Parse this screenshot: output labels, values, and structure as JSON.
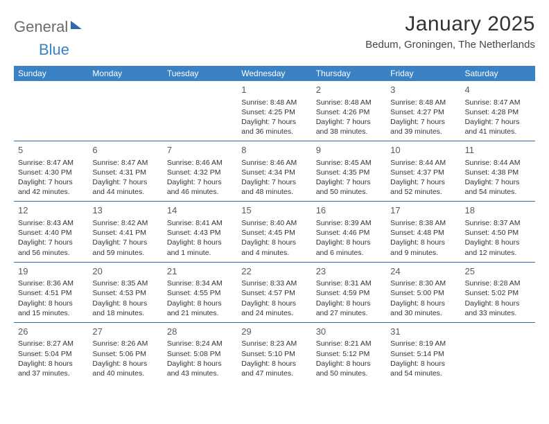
{
  "logo": {
    "part1": "General",
    "part2": "Blue"
  },
  "title": "January 2025",
  "location": "Bedum, Groningen, The Netherlands",
  "colors": {
    "header_bg": "#3b82c4",
    "header_text": "#ffffff",
    "border": "#2f6aa8",
    "text": "#333333",
    "logo_gray": "#6b6b6b",
    "logo_blue": "#3b82c4",
    "background": "#ffffff"
  },
  "dow": [
    "Sunday",
    "Monday",
    "Tuesday",
    "Wednesday",
    "Thursday",
    "Friday",
    "Saturday"
  ],
  "weeks": [
    [
      null,
      null,
      null,
      {
        "n": "1",
        "sr": "Sunrise: 8:48 AM",
        "ss": "Sunset: 4:25 PM",
        "d1": "Daylight: 7 hours",
        "d2": "and 36 minutes."
      },
      {
        "n": "2",
        "sr": "Sunrise: 8:48 AM",
        "ss": "Sunset: 4:26 PM",
        "d1": "Daylight: 7 hours",
        "d2": "and 38 minutes."
      },
      {
        "n": "3",
        "sr": "Sunrise: 8:48 AM",
        "ss": "Sunset: 4:27 PM",
        "d1": "Daylight: 7 hours",
        "d2": "and 39 minutes."
      },
      {
        "n": "4",
        "sr": "Sunrise: 8:47 AM",
        "ss": "Sunset: 4:28 PM",
        "d1": "Daylight: 7 hours",
        "d2": "and 41 minutes."
      }
    ],
    [
      {
        "n": "5",
        "sr": "Sunrise: 8:47 AM",
        "ss": "Sunset: 4:30 PM",
        "d1": "Daylight: 7 hours",
        "d2": "and 42 minutes."
      },
      {
        "n": "6",
        "sr": "Sunrise: 8:47 AM",
        "ss": "Sunset: 4:31 PM",
        "d1": "Daylight: 7 hours",
        "d2": "and 44 minutes."
      },
      {
        "n": "7",
        "sr": "Sunrise: 8:46 AM",
        "ss": "Sunset: 4:32 PM",
        "d1": "Daylight: 7 hours",
        "d2": "and 46 minutes."
      },
      {
        "n": "8",
        "sr": "Sunrise: 8:46 AM",
        "ss": "Sunset: 4:34 PM",
        "d1": "Daylight: 7 hours",
        "d2": "and 48 minutes."
      },
      {
        "n": "9",
        "sr": "Sunrise: 8:45 AM",
        "ss": "Sunset: 4:35 PM",
        "d1": "Daylight: 7 hours",
        "d2": "and 50 minutes."
      },
      {
        "n": "10",
        "sr": "Sunrise: 8:44 AM",
        "ss": "Sunset: 4:37 PM",
        "d1": "Daylight: 7 hours",
        "d2": "and 52 minutes."
      },
      {
        "n": "11",
        "sr": "Sunrise: 8:44 AM",
        "ss": "Sunset: 4:38 PM",
        "d1": "Daylight: 7 hours",
        "d2": "and 54 minutes."
      }
    ],
    [
      {
        "n": "12",
        "sr": "Sunrise: 8:43 AM",
        "ss": "Sunset: 4:40 PM",
        "d1": "Daylight: 7 hours",
        "d2": "and 56 minutes."
      },
      {
        "n": "13",
        "sr": "Sunrise: 8:42 AM",
        "ss": "Sunset: 4:41 PM",
        "d1": "Daylight: 7 hours",
        "d2": "and 59 minutes."
      },
      {
        "n": "14",
        "sr": "Sunrise: 8:41 AM",
        "ss": "Sunset: 4:43 PM",
        "d1": "Daylight: 8 hours",
        "d2": "and 1 minute."
      },
      {
        "n": "15",
        "sr": "Sunrise: 8:40 AM",
        "ss": "Sunset: 4:45 PM",
        "d1": "Daylight: 8 hours",
        "d2": "and 4 minutes."
      },
      {
        "n": "16",
        "sr": "Sunrise: 8:39 AM",
        "ss": "Sunset: 4:46 PM",
        "d1": "Daylight: 8 hours",
        "d2": "and 6 minutes."
      },
      {
        "n": "17",
        "sr": "Sunrise: 8:38 AM",
        "ss": "Sunset: 4:48 PM",
        "d1": "Daylight: 8 hours",
        "d2": "and 9 minutes."
      },
      {
        "n": "18",
        "sr": "Sunrise: 8:37 AM",
        "ss": "Sunset: 4:50 PM",
        "d1": "Daylight: 8 hours",
        "d2": "and 12 minutes."
      }
    ],
    [
      {
        "n": "19",
        "sr": "Sunrise: 8:36 AM",
        "ss": "Sunset: 4:51 PM",
        "d1": "Daylight: 8 hours",
        "d2": "and 15 minutes."
      },
      {
        "n": "20",
        "sr": "Sunrise: 8:35 AM",
        "ss": "Sunset: 4:53 PM",
        "d1": "Daylight: 8 hours",
        "d2": "and 18 minutes."
      },
      {
        "n": "21",
        "sr": "Sunrise: 8:34 AM",
        "ss": "Sunset: 4:55 PM",
        "d1": "Daylight: 8 hours",
        "d2": "and 21 minutes."
      },
      {
        "n": "22",
        "sr": "Sunrise: 8:33 AM",
        "ss": "Sunset: 4:57 PM",
        "d1": "Daylight: 8 hours",
        "d2": "and 24 minutes."
      },
      {
        "n": "23",
        "sr": "Sunrise: 8:31 AM",
        "ss": "Sunset: 4:59 PM",
        "d1": "Daylight: 8 hours",
        "d2": "and 27 minutes."
      },
      {
        "n": "24",
        "sr": "Sunrise: 8:30 AM",
        "ss": "Sunset: 5:00 PM",
        "d1": "Daylight: 8 hours",
        "d2": "and 30 minutes."
      },
      {
        "n": "25",
        "sr": "Sunrise: 8:28 AM",
        "ss": "Sunset: 5:02 PM",
        "d1": "Daylight: 8 hours",
        "d2": "and 33 minutes."
      }
    ],
    [
      {
        "n": "26",
        "sr": "Sunrise: 8:27 AM",
        "ss": "Sunset: 5:04 PM",
        "d1": "Daylight: 8 hours",
        "d2": "and 37 minutes."
      },
      {
        "n": "27",
        "sr": "Sunrise: 8:26 AM",
        "ss": "Sunset: 5:06 PM",
        "d1": "Daylight: 8 hours",
        "d2": "and 40 minutes."
      },
      {
        "n": "28",
        "sr": "Sunrise: 8:24 AM",
        "ss": "Sunset: 5:08 PM",
        "d1": "Daylight: 8 hours",
        "d2": "and 43 minutes."
      },
      {
        "n": "29",
        "sr": "Sunrise: 8:23 AM",
        "ss": "Sunset: 5:10 PM",
        "d1": "Daylight: 8 hours",
        "d2": "and 47 minutes."
      },
      {
        "n": "30",
        "sr": "Sunrise: 8:21 AM",
        "ss": "Sunset: 5:12 PM",
        "d1": "Daylight: 8 hours",
        "d2": "and 50 minutes."
      },
      {
        "n": "31",
        "sr": "Sunrise: 8:19 AM",
        "ss": "Sunset: 5:14 PM",
        "d1": "Daylight: 8 hours",
        "d2": "and 54 minutes."
      },
      null
    ]
  ]
}
